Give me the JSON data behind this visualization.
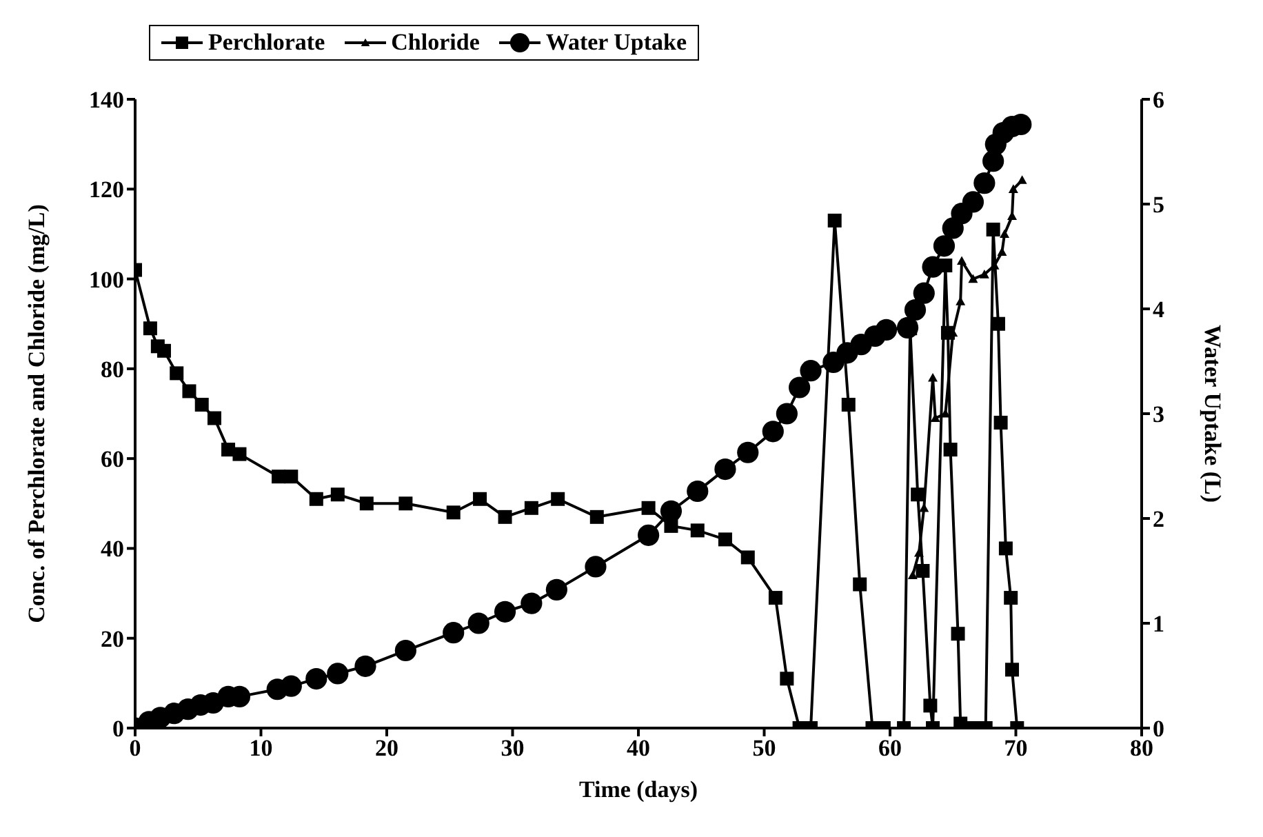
{
  "chart_data": {
    "type": "line",
    "xlabel": "Time (days)",
    "ylabel": "Conc. of Perchlorate and Chloride (mg/L)",
    "y2label": "Water Uptake (L)",
    "xlim": [
      0,
      80
    ],
    "xticks": [
      0,
      10,
      20,
      30,
      40,
      50,
      60,
      70,
      80
    ],
    "ylim": [
      0,
      140
    ],
    "yticks": [
      0,
      20,
      40,
      60,
      80,
      100,
      120,
      140
    ],
    "y2lim": [
      0,
      6
    ],
    "y2ticks": [
      0,
      1,
      2,
      3,
      4,
      5,
      6
    ],
    "grid": false,
    "legend": "top left",
    "line_style": "solid",
    "series": [
      {
        "name": "Perchlorate",
        "color": "#000000",
        "marker": "square",
        "x": [
          0,
          1.2,
          1.8,
          2.3,
          3.3,
          4.3,
          5.3,
          6.3,
          7.4,
          8.3,
          11.4,
          12.4,
          14.4,
          16.1,
          18.4,
          21.5,
          25.3,
          27.4,
          29.4,
          31.5,
          33.6,
          36.7,
          40.8,
          42.6,
          44.7,
          46.9,
          48.7,
          50.9,
          51.8,
          52.8,
          53.7,
          55.6,
          56.7,
          57.6,
          58.6,
          59.5,
          61.1,
          61.6,
          62.2,
          62.6,
          63.2,
          63.4,
          64.4,
          64.6,
          64.8,
          65.4,
          65.6,
          66.3,
          67,
          67.6,
          68.2,
          68.6,
          68.8,
          69.2,
          69.6,
          69.7,
          70.1
        ],
        "values": [
          102,
          89,
          85,
          84,
          79,
          75,
          72,
          69,
          62,
          61,
          56,
          56,
          51,
          52,
          50,
          50,
          48,
          51,
          47,
          49,
          51,
          47,
          49,
          45,
          44,
          42,
          38,
          29,
          11,
          0,
          0,
          113,
          72,
          32,
          0,
          0,
          0,
          89,
          52,
          35,
          5,
          0,
          103,
          88,
          62,
          21,
          1,
          0,
          0,
          0,
          111,
          90,
          68,
          40,
          29,
          13,
          0
        ]
      },
      {
        "name": "Chloride",
        "color": "#000000",
        "marker": "triangle",
        "x": [
          61.8,
          62.3,
          62.7,
          63.4,
          63.6,
          64.4,
          65,
          65.6,
          65.7,
          66.6,
          67.5,
          68.3,
          68.9,
          69.1,
          69.7,
          69.8,
          70.5
        ],
        "values": [
          34,
          39,
          49,
          78,
          69,
          70,
          88,
          95,
          104,
          100,
          101,
          103,
          106,
          110,
          114,
          120,
          122
        ]
      },
      {
        "name": "Water Uptake",
        "color": "#000000",
        "marker": "circle",
        "axis": "y2",
        "x": [
          0,
          1.1,
          2,
          3.1,
          4.2,
          5.2,
          6.2,
          7.4,
          8.3,
          11.3,
          12.4,
          14.4,
          16.1,
          18.3,
          21.5,
          25.3,
          27.3,
          29.4,
          31.5,
          33.5,
          36.6,
          40.8,
          42.6,
          44.7,
          46.9,
          48.7,
          50.7,
          51.8,
          52.8,
          53.7,
          55.5,
          56.6,
          57.7,
          58.8,
          59.7,
          61.4,
          62,
          62.7,
          63.4,
          64.3,
          65,
          65.7,
          66.6,
          67.5,
          68.2,
          68.4,
          69,
          69.7,
          70.4
        ],
        "values": [
          0,
          0.06,
          0.1,
          0.14,
          0.18,
          0.22,
          0.24,
          0.3,
          0.3,
          0.37,
          0.4,
          0.47,
          0.52,
          0.59,
          0.74,
          0.91,
          1,
          1.11,
          1.19,
          1.32,
          1.54,
          1.84,
          2.07,
          2.26,
          2.47,
          2.63,
          2.83,
          3,
          3.25,
          3.41,
          3.49,
          3.58,
          3.66,
          3.74,
          3.8,
          3.82,
          3.99,
          4.15,
          4.4,
          4.6,
          4.77,
          4.91,
          5.02,
          5.2,
          5.41,
          5.57,
          5.68,
          5.74,
          5.76
        ]
      }
    ]
  }
}
